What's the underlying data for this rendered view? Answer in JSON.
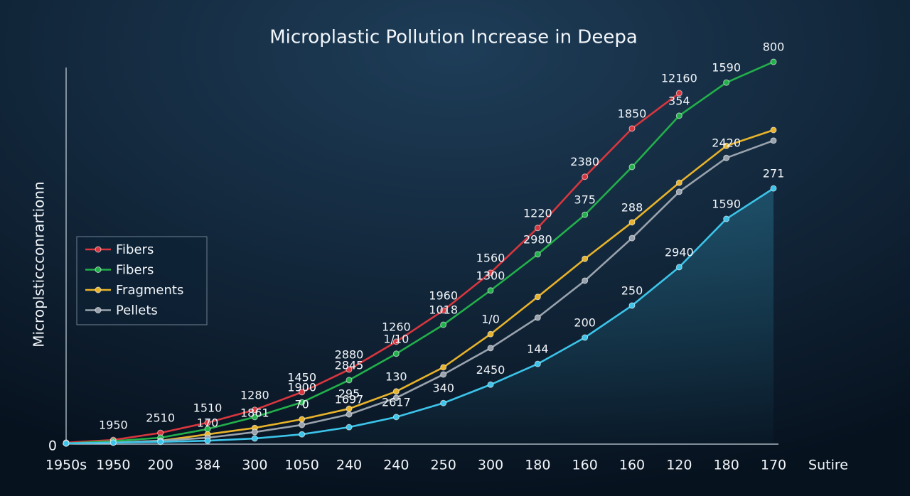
{
  "chart_data": {
    "type": "line",
    "title": "Microplastic Pollution  Increase  in Deepa",
    "y_label": "Microplsticcconrartionn",
    "x_label": "Sutire",
    "categories": [
      "1950s",
      "1950",
      "200",
      "384",
      "300",
      "1050",
      "240",
      "240",
      "250",
      "300",
      "180",
      "160",
      "160",
      "120",
      "180",
      "170"
    ],
    "ylim": [
      0,
      105
    ],
    "yticks": [
      0
    ],
    "legend": "left",
    "series": [
      {
        "name": "Fibers",
        "color": "#d9363e",
        "values": [
          0.4,
          1.1,
          3.0,
          5.7,
          9.1,
          13.8,
          19.8,
          27.2,
          35.5,
          45.5,
          57.4,
          71.0,
          83.8,
          93.2,
          null,
          null
        ],
        "labels": [
          null,
          "1950",
          "2510",
          "1510",
          "1280",
          "1450",
          "2880",
          "1260",
          "1960",
          "1560",
          "1220",
          "2380",
          "1850",
          "12160",
          null,
          null
        ]
      },
      {
        "name": "Fibers",
        "color": "#22b04a",
        "values": [
          0.2,
          0.8,
          1.7,
          4.0,
          7.2,
          11.1,
          17.0,
          24.0,
          31.7,
          40.8,
          50.4,
          60.9,
          73.6,
          87.2,
          96.0,
          101.5
        ],
        "labels": [
          null,
          null,
          null,
          null,
          null,
          "1900",
          "2845",
          "1/10",
          "1018",
          "1300",
          "2980",
          "375",
          null,
          "354",
          "1590",
          "800"
        ]
      },
      {
        "name": "Fragments",
        "color": "#e8b32a",
        "values": [
          0.2,
          0.4,
          0.9,
          2.6,
          4.3,
          6.6,
          9.4,
          14.0,
          20.4,
          29.2,
          39.1,
          49.2,
          58.9,
          69.4,
          79.2,
          83.4
        ],
        "labels": [
          null,
          null,
          null,
          null,
          "1861",
          "70",
          "295",
          "130",
          null,
          "1/0",
          null,
          null,
          "288",
          null,
          null,
          null
        ]
      },
      {
        "name": "Pellets",
        "color": "#9aa3ad",
        "values": [
          0.2,
          0.4,
          0.9,
          1.7,
          3.2,
          5.1,
          7.9,
          12.3,
          18.5,
          25.5,
          33.6,
          43.4,
          54.7,
          67.0,
          76.0,
          80.6
        ],
        "labels": [
          null,
          null,
          null,
          "170",
          null,
          null,
          "1697",
          null,
          null,
          null,
          null,
          null,
          null,
          null,
          "2420",
          null
        ]
      },
      {
        "color": "#3cc4ea",
        "values": [
          0.2,
          0.4,
          0.6,
          0.9,
          1.5,
          2.6,
          4.5,
          7.2,
          10.9,
          15.8,
          21.3,
          28.3,
          36.8,
          47.0,
          59.8,
          67.9
        ],
        "labels": [
          null,
          null,
          null,
          null,
          null,
          null,
          null,
          "2617",
          "340",
          "2450",
          "144",
          "200",
          "250",
          "2940",
          "1590",
          "271"
        ]
      }
    ]
  }
}
